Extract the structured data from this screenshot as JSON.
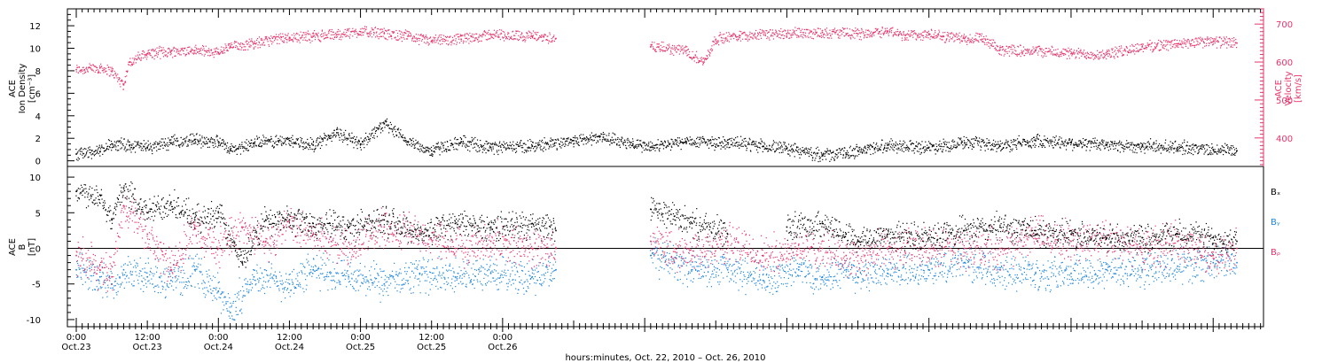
{
  "colors": {
    "black": "#000000",
    "pink": "#e8336a",
    "blue": "#1f86de"
  },
  "chart_data": [
    {
      "type": "scatter",
      "panel": "top",
      "ylabel_left": [
        "ACE",
        "Ion Density",
        "[cm⁻³]"
      ],
      "ylabel_right": [
        "ACE",
        "Velocity",
        "[km/s]"
      ],
      "ylim_left": [
        -0.5,
        13.5
      ],
      "yticks_left": [
        "0",
        "2",
        "4",
        "6",
        "8",
        "10",
        "12"
      ],
      "ylim_right": [
        325,
        740
      ],
      "yticks_right": [
        "400",
        "500",
        "600",
        "700"
      ],
      "grid": false,
      "series": [
        {
          "color_key": "black",
          "axis": "left",
          "points": [
            [
              0,
              0.6
            ],
            [
              4,
              0.8
            ],
            [
              6,
              1.5
            ],
            [
              9,
              1.4
            ],
            [
              12,
              1.2
            ],
            [
              16,
              1.6
            ],
            [
              20,
              1.9
            ],
            [
              24,
              1.7
            ],
            [
              26,
              0.9
            ],
            [
              30,
              1.6
            ],
            [
              36,
              1.8
            ],
            [
              40,
              1.4
            ],
            [
              44,
              2.5
            ],
            [
              48,
              1.5
            ],
            [
              52,
              3.3
            ],
            [
              56,
              1.7
            ],
            [
              60,
              0.9
            ],
            [
              65,
              1.7
            ],
            [
              70,
              1.2
            ],
            [
              77,
              1.3
            ],
            [
              84,
              1.8
            ],
            [
              89,
              2.1
            ],
            [
              94,
              1.5
            ],
            [
              97,
              1.2
            ],
            [
              103,
              1.7
            ],
            [
              110,
              1.6
            ],
            [
              116,
              1.3
            ],
            [
              120,
              1.1
            ],
            [
              126,
              0.5
            ],
            [
              130,
              0.7
            ],
            [
              132,
              0.9
            ],
            [
              137,
              1.4
            ],
            [
              144,
              1.2
            ],
            [
              150,
              1.6
            ],
            [
              156,
              1.3
            ],
            [
              162,
              1.8
            ],
            [
              168,
              1.6
            ],
            [
              174,
              1.4
            ],
            [
              180,
              1.3
            ],
            [
              186,
              1.2
            ],
            [
              192,
              1.0
            ],
            [
              196,
              0.9
            ]
          ]
        },
        {
          "color_key": "pink",
          "axis": "right",
          "points": [
            [
              0,
              580
            ],
            [
              4,
              585
            ],
            [
              6,
              575
            ],
            [
              8,
              540
            ],
            [
              9,
              600
            ],
            [
              12,
              622
            ],
            [
              16,
              628
            ],
            [
              20,
              630
            ],
            [
              24,
              625
            ],
            [
              26,
              640
            ],
            [
              30,
              650
            ],
            [
              36,
              665
            ],
            [
              40,
              668
            ],
            [
              44,
              672
            ],
            [
              48,
              680
            ],
            [
              52,
              675
            ],
            [
              56,
              668
            ],
            [
              60,
              655
            ],
            [
              65,
              660
            ],
            [
              70,
              672
            ],
            [
              77,
              668
            ],
            [
              81,
              662
            ],
            [
              97,
              640
            ],
            [
              103,
              630
            ],
            [
              106,
              600
            ],
            [
              108,
              660
            ],
            [
              112,
              670
            ],
            [
              120,
              675
            ],
            [
              126,
              678
            ],
            [
              132,
              674
            ],
            [
              137,
              682
            ],
            [
              140,
              670
            ],
            [
              144,
              672
            ],
            [
              150,
              662
            ],
            [
              153,
              660
            ],
            [
              156,
              632
            ],
            [
              162,
              630
            ],
            [
              168,
              622
            ],
            [
              174,
              620
            ],
            [
              180,
              640
            ],
            [
              186,
              648
            ],
            [
              192,
              654
            ],
            [
              196,
              650
            ]
          ]
        }
      ]
    },
    {
      "type": "scatter",
      "panel": "bottom",
      "ylabel_left": [
        "ACE",
        "B",
        "[nT]"
      ],
      "ylim": [
        -11,
        11.5
      ],
      "yticks": [
        "-10",
        "-5",
        "0",
        "5",
        "10"
      ],
      "zero_line": true,
      "legend_placement": "right",
      "series": [
        {
          "name": "Bₓ",
          "color_key": "black",
          "points": [
            [
              0,
              8
            ],
            [
              4,
              7.5
            ],
            [
              6,
              4
            ],
            [
              8,
              8.5
            ],
            [
              12,
              5
            ],
            [
              16,
              6.5
            ],
            [
              20,
              4
            ],
            [
              24,
              5
            ],
            [
              28,
              -2
            ],
            [
              32,
              4
            ],
            [
              36,
              4
            ],
            [
              40,
              3.5
            ],
            [
              46,
              3
            ],
            [
              52,
              4
            ],
            [
              58,
              2
            ],
            [
              64,
              3.5
            ],
            [
              70,
              3
            ],
            [
              77,
              3.5
            ],
            [
              81,
              2.5
            ],
            [
              97,
              5.5
            ],
            [
              101,
              4.5
            ],
            [
              104,
              3.5
            ],
            [
              110,
              2
            ],
            [
              120,
              3
            ],
            [
              126,
              3.5
            ],
            [
              130,
              2
            ],
            [
              132,
              1
            ],
            [
              137,
              2
            ],
            [
              144,
              1.5
            ],
            [
              150,
              2.5
            ],
            [
              156,
              3
            ],
            [
              162,
              2.5
            ],
            [
              168,
              2
            ],
            [
              174,
              1.5
            ],
            [
              180,
              1.5
            ],
            [
              186,
              2
            ],
            [
              192,
              1.5
            ],
            [
              196,
              1
            ]
          ]
        },
        {
          "name": "Bᵧ",
          "color_key": "blue",
          "points": [
            [
              0,
              -3
            ],
            [
              4,
              -4
            ],
            [
              6,
              -5
            ],
            [
              8,
              -3
            ],
            [
              12,
              -4
            ],
            [
              16,
              -4.5
            ],
            [
              20,
              -3
            ],
            [
              24,
              -6
            ],
            [
              26,
              -9
            ],
            [
              30,
              -4
            ],
            [
              36,
              -5
            ],
            [
              40,
              -3
            ],
            [
              46,
              -4
            ],
            [
              52,
              -5
            ],
            [
              58,
              -3.5
            ],
            [
              64,
              -4
            ],
            [
              70,
              -3.5
            ],
            [
              77,
              -4
            ],
            [
              81,
              -3
            ],
            [
              97,
              -1
            ],
            [
              101,
              -2
            ],
            [
              104,
              -3
            ],
            [
              110,
              -3
            ],
            [
              116,
              -4.5
            ],
            [
              122,
              -3
            ],
            [
              126,
              -4
            ],
            [
              130,
              -3
            ],
            [
              132,
              -4
            ],
            [
              137,
              -3.5
            ],
            [
              144,
              -3
            ],
            [
              150,
              -2
            ],
            [
              156,
              -3
            ],
            [
              162,
              -3.5
            ],
            [
              168,
              -3.5
            ],
            [
              174,
              -3
            ],
            [
              180,
              -3
            ],
            [
              186,
              -2.5
            ],
            [
              192,
              -2
            ],
            [
              196,
              -2
            ]
          ]
        },
        {
          "name": "Bᵨ",
          "color_key": "pink",
          "points": [
            [
              0,
              -1
            ],
            [
              4,
              -3
            ],
            [
              6,
              -4
            ],
            [
              8,
              6
            ],
            [
              12,
              2
            ],
            [
              16,
              -3
            ],
            [
              20,
              3
            ],
            [
              24,
              0
            ],
            [
              28,
              3
            ],
            [
              32,
              1
            ],
            [
              36,
              3
            ],
            [
              40,
              2
            ],
            [
              46,
              0
            ],
            [
              52,
              3
            ],
            [
              58,
              2
            ],
            [
              64,
              0
            ],
            [
              70,
              1
            ],
            [
              77,
              0
            ],
            [
              81,
              0
            ],
            [
              97,
              1
            ],
            [
              101,
              0
            ],
            [
              104,
              -1
            ],
            [
              110,
              1
            ],
            [
              116,
              -1
            ],
            [
              122,
              0
            ],
            [
              126,
              0
            ],
            [
              130,
              -1
            ],
            [
              132,
              -1
            ],
            [
              137,
              0
            ],
            [
              144,
              0
            ],
            [
              150,
              0
            ],
            [
              156,
              0
            ],
            [
              162,
              2
            ],
            [
              168,
              1
            ],
            [
              174,
              1.5
            ],
            [
              180,
              0
            ],
            [
              186,
              1
            ],
            [
              192,
              -1
            ],
            [
              196,
              0
            ]
          ]
        }
      ]
    }
  ],
  "x_axis": {
    "range_hours": [
      -1.5,
      200.5
    ],
    "major_ticks": [
      {
        "h": 0,
        "time": "0:00",
        "date": "Oct.23"
      },
      {
        "h": 24,
        "time": "0:00",
        "date": "Oct.24"
      },
      {
        "h": 48,
        "time": "0:00",
        "date": "Oct.25"
      },
      {
        "h": 72,
        "time": "0:00",
        "date": "Oct.26"
      }
    ],
    "tick_labels": [
      {
        "h": 0,
        "time": "0:00",
        "date": "Oct.23"
      },
      {
        "h": 12,
        "time": "12:00",
        "date": "Oct.23"
      },
      {
        "h": 24,
        "time": "0:00",
        "date": "Oct.24"
      },
      {
        "h": 36,
        "time": "12:00",
        "date": "Oct.24"
      },
      {
        "h": 48,
        "time": "0:00",
        "date": "Oct.25"
      },
      {
        "h": 60,
        "time": "12:00",
        "date": "Oct.25"
      },
      {
        "h": 72,
        "time": "0:00",
        "date": "Oct.26"
      }
    ],
    "xlabel": "hours:minutes, Oct. 22, 2010 – Oct. 26, 2010"
  }
}
